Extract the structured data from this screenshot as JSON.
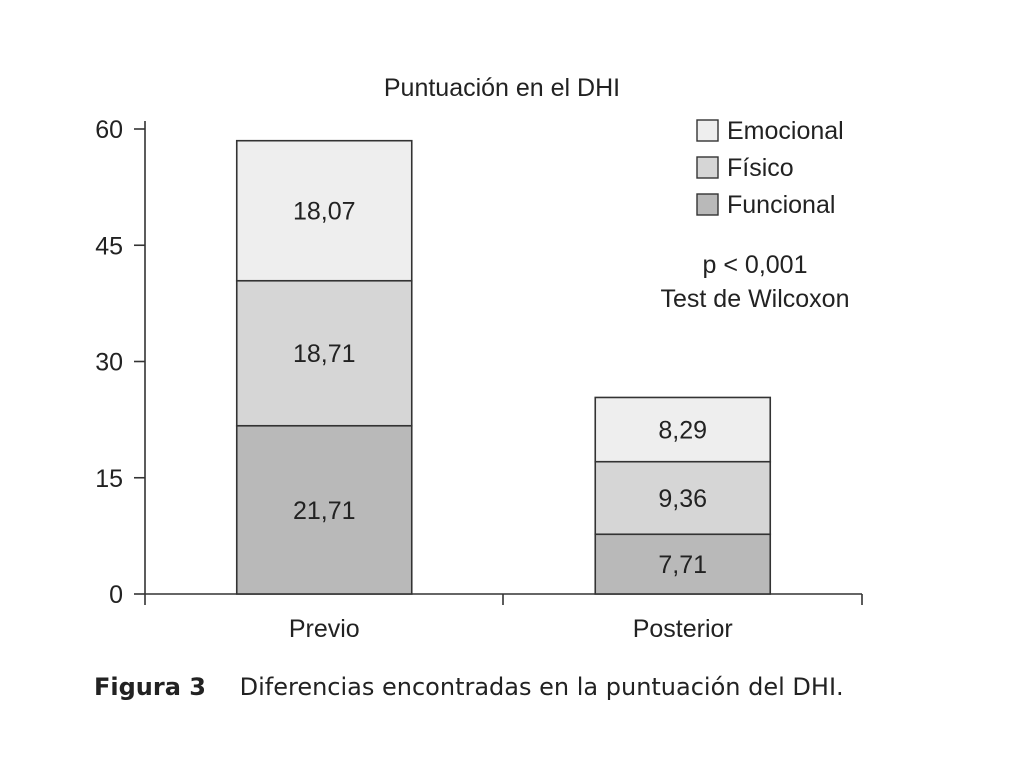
{
  "chart_data": {
    "type": "bar",
    "stacked": true,
    "title": "Puntuación en el DHI",
    "categories": [
      "Previo",
      "Posterior"
    ],
    "series": [
      {
        "name": "Funcional",
        "values": [
          21.71,
          7.71
        ],
        "labels": [
          "21,71",
          "7,71"
        ],
        "color": "#b9b9b9"
      },
      {
        "name": "Físico",
        "values": [
          18.71,
          9.36
        ],
        "labels": [
          "18,71",
          "9,36"
        ],
        "color": "#d6d6d6"
      },
      {
        "name": "Emocional",
        "values": [
          18.07,
          8.29
        ],
        "labels": [
          "18,07",
          "8,29"
        ],
        "color": "#eeeeee"
      }
    ],
    "legend_order": [
      "Emocional",
      "Físico",
      "Funcional"
    ],
    "legend_position": "top-right",
    "yticks": [
      0,
      15,
      30,
      45,
      60
    ],
    "ylim": [
      0,
      60
    ],
    "grid": false,
    "annotations": [
      "p < 0,001",
      "Test de Wilcoxon"
    ]
  },
  "caption": {
    "label": "Figura 3",
    "text": "Diferencias encontradas en la puntuación del DHI."
  }
}
